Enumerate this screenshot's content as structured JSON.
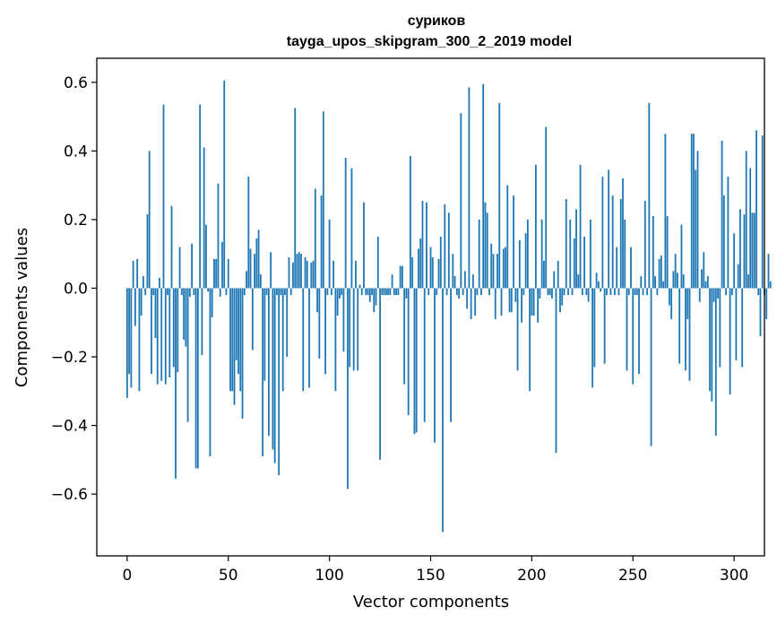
{
  "chart_data": {
    "type": "bar",
    "title": "суриков",
    "subtitle": "tayga_upos_skipgram_300_2_2019 model",
    "xlabel": "Vector components",
    "ylabel": "Components values",
    "xlim": [
      -15,
      315
    ],
    "ylim": [
      -0.78,
      0.67
    ],
    "x_ticks": [
      0,
      50,
      100,
      150,
      200,
      250,
      300
    ],
    "x_tick_labels": [
      "0",
      "50",
      "100",
      "150",
      "200",
      "250",
      "300"
    ],
    "y_ticks": [
      -0.6,
      -0.4,
      -0.2,
      0.0,
      0.2,
      0.4,
      0.6
    ],
    "y_tick_labels": [
      "−0.6",
      "−0.4",
      "−0.2",
      "0.0",
      "0.2",
      "0.4",
      "0.6"
    ],
    "bar_color": "#1f77b4",
    "grid": false,
    "series": [
      {
        "values": [
          -0.32,
          -0.25,
          -0.29,
          0.08,
          -0.11,
          0.085,
          -0.3,
          -0.08,
          0.035,
          -0.02,
          0.215,
          0.4,
          -0.25,
          -0.02,
          -0.145,
          -0.28,
          0.03,
          -0.27,
          0.535,
          -0.28,
          -0.02,
          -0.26,
          0.24,
          -0.23,
          -0.555,
          -0.245,
          0.12,
          -0.02,
          -0.15,
          -0.17,
          -0.39,
          -0.025,
          0.13,
          -0.02,
          -0.525,
          -0.525,
          0.535,
          -0.195,
          0.41,
          0.185,
          -0.01,
          -0.49,
          -0.085,
          0.085,
          0.085,
          0.305,
          -0.025,
          0.135,
          0.605,
          -0.02,
          0.085,
          -0.3,
          -0.3,
          -0.34,
          -0.21,
          -0.25,
          -0.3,
          -0.38,
          -0.02,
          0.05,
          0.325,
          0.115,
          -0.18,
          0.1,
          0.145,
          0.17,
          0.04,
          -0.49,
          -0.27,
          -0.02,
          -0.43,
          0.105,
          -0.47,
          -0.51,
          -0.02,
          -0.545,
          -0.02,
          -0.3,
          -0.02,
          -0.2,
          0.09,
          -0.02,
          0.075,
          0.525,
          0.1,
          0.105,
          0.1,
          -0.3,
          0.09,
          0.08,
          -0.29,
          0.075,
          0.08,
          0.29,
          -0.07,
          -0.205,
          0.27,
          0.515,
          -0.25,
          -0.02,
          0.2,
          -0.02,
          0.08,
          -0.3,
          -0.08,
          -0.03,
          -0.02,
          -0.185,
          0.38,
          -0.585,
          -0.23,
          0.35,
          -0.24,
          0.08,
          -0.24,
          0.01,
          -0.02,
          0.25,
          -0.02,
          -0.02,
          -0.04,
          -0.02,
          -0.07,
          -0.05,
          0.15,
          -0.5,
          -0.02,
          -0.02,
          -0.02,
          -0.02,
          -0.02,
          0.04,
          -0.02,
          -0.02,
          -0.02,
          0.065,
          0.065,
          -0.28,
          -0.03,
          -0.37,
          0.385,
          0.09,
          -0.425,
          -0.42,
          0.115,
          0.145,
          0.255,
          -0.39,
          0.25,
          -0.02,
          0.12,
          0.09,
          -0.45,
          -0.02,
          0.085,
          0.15,
          -0.71,
          0.245,
          -0.02,
          0.22,
          -0.39,
          0.1,
          0.035,
          -0.02,
          -0.03,
          0.51,
          -0.02,
          0.05,
          -0.06,
          0.585,
          -0.09,
          0.04,
          -0.08,
          -0.02,
          0.2,
          -0.02,
          0.595,
          0.25,
          0.22,
          -0.02,
          0.13,
          0.1,
          -0.09,
          0.1,
          0.54,
          -0.08,
          0.115,
          0.12,
          0.3,
          -0.07,
          -0.07,
          0.27,
          -0.04,
          -0.24,
          0.14,
          -0.1,
          -0.02,
          0.16,
          0.2,
          -0.3,
          -0.08,
          -0.08,
          0.36,
          -0.1,
          -0.03,
          0.2,
          0.08,
          0.47,
          -0.02,
          -0.02,
          -0.03,
          0.05,
          -0.48,
          0.08,
          -0.07,
          -0.05,
          -0.02,
          0.26,
          -0.02,
          0.2,
          -0.02,
          0.145,
          0.23,
          0.04,
          0.36,
          -0.02,
          0.15,
          -0.02,
          -0.04,
          0.2,
          -0.29,
          -0.23,
          0.045,
          0.02,
          -0.01,
          0.325,
          -0.22,
          -0.02,
          0.345,
          -0.02,
          0.27,
          -0.02,
          0.12,
          -0.02,
          0.26,
          0.32,
          0.2,
          -0.24,
          -0.02,
          0.12,
          -0.28,
          -0.02,
          -0.02,
          -0.25,
          0.035,
          -0.02,
          0.255,
          -0.02,
          0.54,
          -0.46,
          0.21,
          0.035,
          -0.02,
          0.085,
          0.095,
          0.02,
          0.45,
          0.21,
          -0.05,
          -0.09,
          0.05,
          0.1,
          0.045,
          -0.22,
          0.185,
          0.04,
          -0.24,
          -0.09,
          -0.27,
          0.45,
          0.45,
          0.345,
          0.4,
          -0.04,
          0.055,
          0.105,
          0.02,
          0.035,
          -0.3,
          -0.33,
          -0.04,
          -0.43,
          -0.03,
          -0.23,
          0.43,
          0.27,
          -0.02,
          0.325,
          -0.31,
          -0.02,
          0.16,
          -0.21,
          0.07,
          0.23,
          -0.23,
          0.215,
          0.4,
          0.04,
          0.35,
          0.22,
          0.22,
          0.46,
          -0.02,
          -0.14,
          0.445,
          -0.02,
          -0.09,
          0.1,
          0.02
        ]
      }
    ]
  }
}
